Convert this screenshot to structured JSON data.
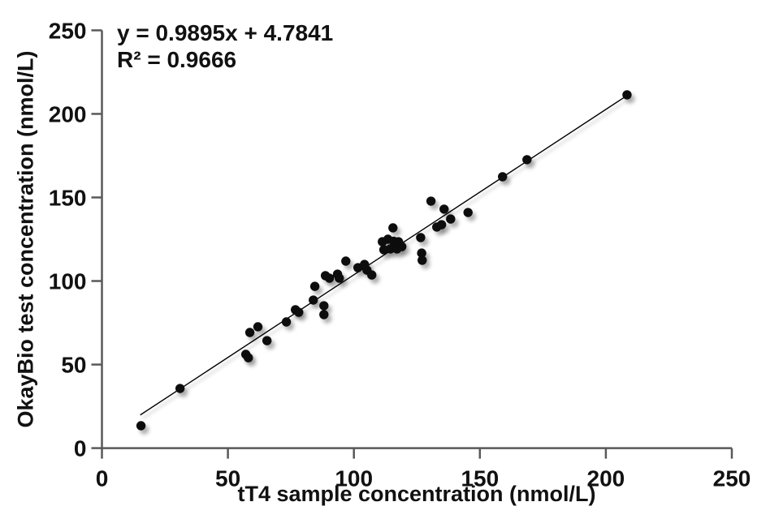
{
  "chart_data": {
    "type": "scatter",
    "title": "",
    "xlabel": "tT4 sample concentration (nmol/L)",
    "ylabel": "OkayBio test concentration (nmol/L)",
    "xlim": [
      0,
      250
    ],
    "ylim": [
      0,
      250
    ],
    "x_ticks": [
      0,
      50,
      100,
      150,
      200,
      250
    ],
    "y_ticks": [
      0,
      50,
      100,
      150,
      200,
      250
    ],
    "grid": false,
    "legend": "none",
    "annotations": {
      "equation": "y = 0.9895x + 4.7841",
      "r_squared": "R² = 0.9666"
    },
    "trendline": {
      "slope": 0.9895,
      "intercept": 4.7841,
      "x_start": 15.2,
      "x_end": 208.4
    },
    "points": [
      [
        15.5,
        13.4
      ],
      [
        31.0,
        35.7
      ],
      [
        57.1,
        56.1
      ],
      [
        58.1,
        54.1
      ],
      [
        58.7,
        69.2
      ],
      [
        61.9,
        72.6
      ],
      [
        65.5,
        64.3
      ],
      [
        73.2,
        75.5
      ],
      [
        76.8,
        82.8
      ],
      [
        78.1,
        81.3
      ],
      [
        83.9,
        88.6
      ],
      [
        84.5,
        96.8
      ],
      [
        88.1,
        85.2
      ],
      [
        88.1,
        79.9
      ],
      [
        88.7,
        103.2
      ],
      [
        90.3,
        101.7
      ],
      [
        93.5,
        104.1
      ],
      [
        94.2,
        101.7
      ],
      [
        96.8,
        111.9
      ],
      [
        101.6,
        108.0
      ],
      [
        104.2,
        109.9
      ],
      [
        105.2,
        106.5
      ],
      [
        107.1,
        103.6
      ],
      [
        111.3,
        123.5
      ],
      [
        113.5,
        125.0
      ],
      [
        115.8,
        123.8
      ],
      [
        117.7,
        123.5
      ],
      [
        119.0,
        120.6
      ],
      [
        111.9,
        118.7
      ],
      [
        114.5,
        119.2
      ],
      [
        117.1,
        119.2
      ],
      [
        115.5,
        131.8
      ],
      [
        126.5,
        126.0
      ],
      [
        126.9,
        116.7
      ],
      [
        127.1,
        112.4
      ],
      [
        130.6,
        147.8
      ],
      [
        132.9,
        132.3
      ],
      [
        134.8,
        133.7
      ],
      [
        135.8,
        143.0
      ],
      [
        138.4,
        137.1
      ],
      [
        145.3,
        141.0
      ],
      [
        159.0,
        162.4
      ],
      [
        168.7,
        172.6
      ],
      [
        208.4,
        211.4
      ]
    ],
    "colors": {
      "point": "#0d0d0d",
      "trendline": "#000000",
      "axis": "#595959",
      "text": "#111111",
      "background": "#ffffff"
    }
  }
}
